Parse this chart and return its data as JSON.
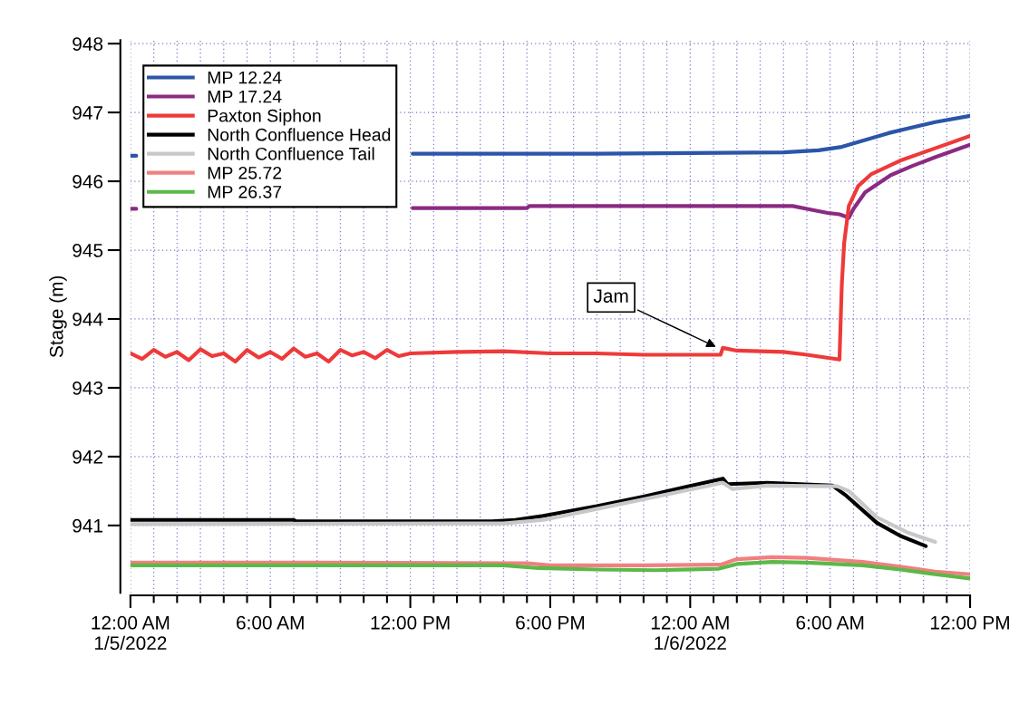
{
  "chart_data": {
    "type": "line",
    "ylabel": "Stage (m)",
    "xlim": [
      "2022-01-05T00:00",
      "2022-01-06T12:00"
    ],
    "ylim": [
      940.02,
      948.05
    ],
    "xticks": [
      {
        "value": "2022-01-05T00:00",
        "label": "12:00 AM\n1/5/2022"
      },
      {
        "value": "2022-01-05T01:00",
        "label": null
      },
      {
        "value": "2022-01-05T02:00",
        "label": null
      },
      {
        "value": "2022-01-05T03:00",
        "label": null
      },
      {
        "value": "2022-01-05T04:00",
        "label": null
      },
      {
        "value": "2022-01-05T05:00",
        "label": null
      },
      {
        "value": "2022-01-05T06:00",
        "label": "6:00 AM"
      },
      {
        "value": "2022-01-05T07:00",
        "label": null
      },
      {
        "value": "2022-01-05T08:00",
        "label": null
      },
      {
        "value": "2022-01-05T09:00",
        "label": null
      },
      {
        "value": "2022-01-05T10:00",
        "label": null
      },
      {
        "value": "2022-01-05T11:00",
        "label": null
      },
      {
        "value": "2022-01-05T12:00",
        "label": "12:00 PM"
      },
      {
        "value": "2022-01-05T13:00",
        "label": null
      },
      {
        "value": "2022-01-05T14:00",
        "label": null
      },
      {
        "value": "2022-01-05T15:00",
        "label": null
      },
      {
        "value": "2022-01-05T16:00",
        "label": null
      },
      {
        "value": "2022-01-05T17:00",
        "label": null
      },
      {
        "value": "2022-01-05T18:00",
        "label": "6:00 PM"
      },
      {
        "value": "2022-01-05T19:00",
        "label": null
      },
      {
        "value": "2022-01-05T20:00",
        "label": null
      },
      {
        "value": "2022-01-05T21:00",
        "label": null
      },
      {
        "value": "2022-01-05T22:00",
        "label": null
      },
      {
        "value": "2022-01-05T23:00",
        "label": null
      },
      {
        "value": "2022-01-06T00:00",
        "label": "12:00 AM\n1/6/2022"
      },
      {
        "value": "2022-01-06T01:00",
        "label": null
      },
      {
        "value": "2022-01-06T02:00",
        "label": null
      },
      {
        "value": "2022-01-06T03:00",
        "label": null
      },
      {
        "value": "2022-01-06T04:00",
        "label": null
      },
      {
        "value": "2022-01-06T05:00",
        "label": null
      },
      {
        "value": "2022-01-06T06:00",
        "label": "6:00 AM"
      },
      {
        "value": "2022-01-06T07:00",
        "label": null
      },
      {
        "value": "2022-01-06T08:00",
        "label": null
      },
      {
        "value": "2022-01-06T09:00",
        "label": null
      },
      {
        "value": "2022-01-06T10:00",
        "label": null
      },
      {
        "value": "2022-01-06T11:00",
        "label": null
      },
      {
        "value": "2022-01-06T12:00",
        "label": "12:00 PM"
      }
    ],
    "yticks": [
      941,
      942,
      943,
      944,
      945,
      946,
      947,
      948
    ],
    "grid": true,
    "legend": "top left",
    "annotations": [
      {
        "text": "Jam",
        "x": "2022-01-06T01:12",
        "y": 943.58
      }
    ],
    "series": [
      {
        "name": "MP 12.24",
        "color": "#2b55a8",
        "x": [
          "2022-01-05T00:00",
          "2022-01-05T00:15",
          "2022-01-05T00:18",
          "2022-01-05T12:06",
          "2022-01-05T16:00",
          "2022-01-05T20:00",
          "2022-01-06T00:00",
          "2022-01-06T04:00",
          "2022-01-06T05:30",
          "2022-01-06T06:30",
          "2022-01-06T07:30",
          "2022-01-06T08:30",
          "2022-01-06T09:30",
          "2022-01-06T10:30",
          "2022-01-06T12:00"
        ],
        "values": [
          946.37,
          946.37,
          null,
          946.4,
          946.4,
          946.4,
          946.41,
          946.42,
          946.45,
          946.5,
          946.6,
          946.7,
          946.78,
          946.86,
          946.95
        ]
      },
      {
        "name": "MP 17.24",
        "color": "#8b2a82",
        "x": [
          "2022-01-05T00:00",
          "2022-01-05T00:15",
          "2022-01-05T00:18",
          "2022-01-05T12:06",
          "2022-01-05T17:00",
          "2022-01-05T17:06",
          "2022-01-06T00:00",
          "2022-01-06T04:24",
          "2022-01-06T05:18",
          "2022-01-06T05:54",
          "2022-01-06T06:24",
          "2022-01-06T06:48",
          "2022-01-06T07:00",
          "2022-01-06T07:30",
          "2022-01-06T08:36",
          "2022-01-06T09:30",
          "2022-01-06T10:30",
          "2022-01-06T12:00"
        ],
        "values": [
          945.6,
          945.6,
          null,
          945.61,
          945.61,
          945.64,
          945.64,
          945.64,
          945.58,
          945.54,
          945.52,
          945.47,
          945.6,
          945.84,
          946.09,
          946.22,
          946.35,
          946.53
        ]
      },
      {
        "name": "Paxton Siphon",
        "color": "#ee3a3a",
        "x": [
          "2022-01-05T00:00",
          "2022-01-05T00:30",
          "2022-01-05T01:00",
          "2022-01-05T01:30",
          "2022-01-05T02:00",
          "2022-01-05T02:30",
          "2022-01-05T03:00",
          "2022-01-05T03:30",
          "2022-01-05T04:00",
          "2022-01-05T04:30",
          "2022-01-05T05:00",
          "2022-01-05T05:30",
          "2022-01-05T06:00",
          "2022-01-05T06:30",
          "2022-01-05T07:00",
          "2022-01-05T07:30",
          "2022-01-05T08:00",
          "2022-01-05T08:30",
          "2022-01-05T09:00",
          "2022-01-05T09:30",
          "2022-01-05T10:00",
          "2022-01-05T10:30",
          "2022-01-05T11:00",
          "2022-01-05T11:30",
          "2022-01-05T12:00",
          "2022-01-05T14:00",
          "2022-01-05T16:00",
          "2022-01-05T18:00",
          "2022-01-05T20:00",
          "2022-01-05T22:00",
          "2022-01-06T01:18",
          "2022-01-06T01:24",
          "2022-01-06T02:00",
          "2022-01-06T03:00",
          "2022-01-06T04:00",
          "2022-01-06T05:00",
          "2022-01-06T06:24",
          "2022-01-06T06:30",
          "2022-01-06T06:36",
          "2022-01-06T06:48",
          "2022-01-06T07:12",
          "2022-01-06T07:45",
          "2022-01-06T09:00",
          "2022-01-06T10:30",
          "2022-01-06T12:00"
        ],
        "values": [
          943.5,
          943.42,
          943.55,
          943.45,
          943.52,
          943.4,
          943.56,
          943.46,
          943.5,
          943.38,
          943.55,
          943.44,
          943.52,
          943.42,
          943.57,
          943.45,
          943.5,
          943.38,
          943.55,
          943.47,
          943.52,
          943.43,
          943.55,
          943.46,
          943.5,
          943.52,
          943.53,
          943.5,
          943.5,
          943.48,
          943.48,
          943.58,
          943.54,
          943.53,
          943.52,
          943.48,
          943.41,
          944.5,
          945.1,
          945.64,
          945.93,
          946.1,
          946.3,
          946.48,
          946.66
        ]
      },
      {
        "name": "North Confluence Head",
        "color": "#000000",
        "x": [
          "2022-01-05T00:00",
          "2022-01-05T07:00",
          "2022-01-05T07:06",
          "2022-01-05T15:30",
          "2022-01-05T16:30",
          "2022-01-05T17:42",
          "2022-01-05T20:00",
          "2022-01-05T22:00",
          "2022-01-06T01:24",
          "2022-01-06T01:36",
          "2022-01-06T03:18",
          "2022-01-06T06:06",
          "2022-01-06T06:42",
          "2022-01-06T08:00",
          "2022-01-06T09:00",
          "2022-01-06T10:06"
        ],
        "values": [
          941.08,
          941.08,
          941.06,
          941.06,
          941.08,
          941.14,
          941.28,
          941.42,
          941.68,
          941.6,
          941.62,
          941.58,
          941.43,
          941.04,
          940.85,
          940.7
        ]
      },
      {
        "name": "North Confluence Tail",
        "color": "#c8c8c8",
        "x": [
          "2022-01-05T00:00",
          "2022-01-05T16:00",
          "2022-01-05T17:42",
          "2022-01-05T20:00",
          "2022-01-05T22:00",
          "2022-01-06T01:24",
          "2022-01-06T01:48",
          "2022-01-06T03:18",
          "2022-01-06T06:18",
          "2022-01-06T06:48",
          "2022-01-06T08:00",
          "2022-01-06T09:18",
          "2022-01-06T10:30"
        ],
        "values": [
          941.02,
          941.03,
          941.08,
          941.24,
          941.38,
          941.62,
          941.53,
          941.58,
          941.57,
          941.5,
          941.12,
          940.9,
          940.76
        ]
      },
      {
        "name": "MP 25.72",
        "color": "#f08080",
        "x": [
          "2022-01-05T00:00",
          "2022-01-05T08:00",
          "2022-01-05T17:00",
          "2022-01-05T18:00",
          "2022-01-05T22:00",
          "2022-01-06T01:18",
          "2022-01-06T02:00",
          "2022-01-06T03:30",
          "2022-01-06T05:00",
          "2022-01-06T07:24",
          "2022-01-06T09:00",
          "2022-01-06T10:30",
          "2022-01-06T12:00"
        ],
        "values": [
          940.46,
          940.46,
          940.45,
          940.42,
          940.42,
          940.43,
          940.51,
          940.54,
          940.53,
          940.47,
          940.4,
          940.33,
          940.29
        ]
      },
      {
        "name": "MP 26.37",
        "color": "#5cb848",
        "x": [
          "2022-01-05T00:00",
          "2022-01-05T08:00",
          "2022-01-05T16:00",
          "2022-01-05T17:30",
          "2022-01-05T20:00",
          "2022-01-05T22:30",
          "2022-01-06T01:12",
          "2022-01-06T02:00",
          "2022-01-06T03:30",
          "2022-01-06T05:00",
          "2022-01-06T07:24",
          "2022-01-06T09:00",
          "2022-01-06T10:30",
          "2022-01-06T12:00"
        ],
        "values": [
          940.42,
          940.42,
          940.42,
          940.38,
          940.36,
          940.35,
          940.37,
          940.44,
          940.47,
          940.46,
          940.42,
          940.36,
          940.29,
          940.23
        ]
      }
    ]
  }
}
